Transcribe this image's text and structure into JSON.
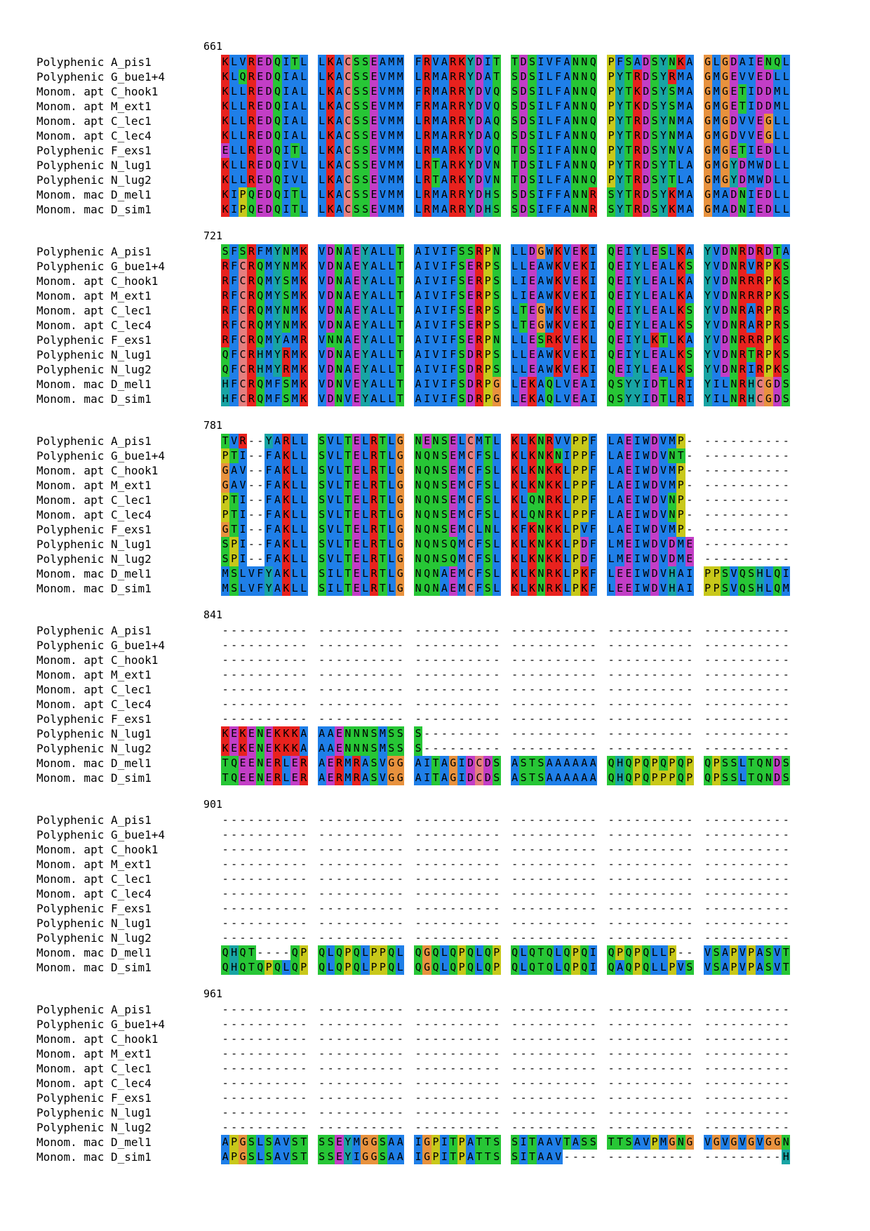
{
  "alignment": {
    "blocks": [
      {
        "start": "661",
        "rows": [
          {
            "name": "Polyphenic A_pis1",
            "seq": "KLVREDQITL LKACSSEAMM FRVARKYDIT TDSIVFANNQ PFSADSYNKA GLGDAIENQL"
          },
          {
            "name": "Polyphenic G_bue1+4",
            "seq": "KLQREDQIAL LKACSSEVMM LRMARRYDAT SDSILFANNQ PYTRDSYRMA GMGEVVEDLL"
          },
          {
            "name": "Monom. apt C_hook1",
            "seq": "KLLREDQIAL LKACSSEVMM FRMARRYDVQ SDSILFANNQ PYTKDSYSMA GMGETIDDML"
          },
          {
            "name": "Monom. apt M_ext1",
            "seq": "KLLREDQIAL LKACSSEVMM FRMARRYDVQ SDSILFANNQ PYTKDSYSMA GMGETIDDML"
          },
          {
            "name": "Monom. apt C_lec1",
            "seq": "KLLREDQIAL LKACSSEVMM LRMARRYDAQ SDSILFANNQ PYTRDSYNMA GMGDVVEGLL"
          },
          {
            "name": "Monom. apt C_lec4",
            "seq": "KLLREDQIAL LKACSSEVMM LRMARRYDAQ SDSILFANNQ PYTRDSYNMA GMGDVVEGLL"
          },
          {
            "name": "Polyphenic F_exs1",
            "seq": "ELLREDQITL LKACSSEVMM LRMARKYDVQ TDSIIFANNQ PYTRDSYNVA GMGETIEDLL"
          },
          {
            "name": "Polyphenic N_lug1",
            "seq": "KLLREDQIVL LKACSSEVMM LRTARKYDVN TDSILFANNQ PYTRDSYTLA GMGYDMWDLL"
          },
          {
            "name": "Polyphenic N_lug2",
            "seq": "KLLREDQIVL LKACSSEVMM LRTARKYDVN TDSILFANNQ PYTRDSYTLA GMGYDMWDLL"
          },
          {
            "name": "Monom. mac D_mel1",
            "seq": "KIPQEDQITL LKACSSEVMM LRMARRYDHS SDSIFFANNR SYTRDSYKMA GMADNIEDLL"
          },
          {
            "name": "Monom. mac D_sim1",
            "seq": "KIPQEDQITL LKACSSEVMM LRMARRYDHS SDSIFFANNR SYTRDSYKMA GMADNIEDLL"
          }
        ]
      },
      {
        "start": "721",
        "rows": [
          {
            "name": "Polyphenic A_pis1",
            "seq": "SFSRFMYNMK VDNAEYALLT AIVIFSSRPN LLDGWKVEKI QEIYLESLKA YVDNRDRDTA"
          },
          {
            "name": "Polyphenic G_bue1+4",
            "seq": "RFCRQMYNMK VDNAEYALLT AIVIFSERPS LLEAWKVEKI QEIYLEALKS YVDNRVRPKS"
          },
          {
            "name": "Monom. apt C_hook1",
            "seq": "RFCRQMYSMK VDNAEYALLT AIVIFSERPS LIEAWKVEKI QEIYLEALKA YVDNRRRPKS"
          },
          {
            "name": "Monom. apt M_ext1",
            "seq": "RFCRQMYSMK VDNAEYALLT AIVIFSERPS LIEAWKVEKI QEIYLEALKA YVDNRRRPKS"
          },
          {
            "name": "Monom. apt C_lec1",
            "seq": "RFCRQMYNMK VDNAEYALLT AIVIFSERPS LTEGWKVEKI QEIYLEALKS YVDNRARPRS"
          },
          {
            "name": "Monom. apt C_lec4",
            "seq": "RFCRQMYNMK VDNAEYALLT AIVIFSERPS LTEGWKVEKI QEIYLEALKS YVDNRARPRS"
          },
          {
            "name": "Polyphenic F_exs1",
            "seq": "RFCRQMYAMR VNNAEYALLT AIVIFSERPN LLESRKVEKL QEIYLKTLKA YVDNRRRPKS"
          },
          {
            "name": "Polyphenic N_lug1",
            "seq": "QFCRHMYRMK VDNAEYALLT AIVIFSDRPS LLEAWKVEKI QEIYLEALKS YVDNRTRPKS"
          },
          {
            "name": "Polyphenic N_lug2",
            "seq": "QFCRHMYRMK VDNAEYALLT AIVIFSDRPS LLEAWKVEKI QEIYLEALKS YVDNRIRPKS"
          },
          {
            "name": "Monom. mac D_mel1",
            "seq": "HFCRQMFSMK VDNVEYALLT AIVIFSDRPG LEKAQLVEAI QSYYIDTLRI YILNRHCGDS"
          },
          {
            "name": "Monom. mac D_sim1",
            "seq": "HFCRQMFSMK VDNVEYALLT AIVIFSDRPG LEKAQLVEAI QSYYIDTLRI YILNRHCGDS"
          }
        ]
      },
      {
        "start": "781",
        "rows": [
          {
            "name": "Polyphenic A_pis1",
            "seq": "TVR--YARLL SVLTELRTLG NENSELCMTL KLKNRVVPPF LAEIWDVMP- ----------"
          },
          {
            "name": "Polyphenic G_bue1+4",
            "seq": "PTI--FAKLL SVLTELRTLG NQNSEMCFSL KLKNKNIPPF LAEIWDVNT- ----------"
          },
          {
            "name": "Monom. apt C_hook1",
            "seq": "GAV--FAKLL SVLTELRTLG NQNSEMCFSL KLKNKKLPPF LAEIWDVMP- ----------"
          },
          {
            "name": "Monom. apt M_ext1",
            "seq": "GAV--FAKLL SVLTELRTLG NQNSEMCFSL KLKNKKLPPF LAEIWDVMP- ----------"
          },
          {
            "name": "Monom. apt C_lec1",
            "seq": "PTI--FAKLL SVLTELRTLG NQNSEMCFSL KLQNRKLPPF LAEIWDVNP- ----------"
          },
          {
            "name": "Monom. apt C_lec4",
            "seq": "PTI--FAKLL SVLTELRTLG NQNSEMCFSL KLQNRKLPPF LAEIWDVNP- ----------"
          },
          {
            "name": "Polyphenic F_exs1",
            "seq": "GTI--FAKLL SVLTELRTLG NQNSEMCLNL KFKNKKLPVF LAEIWDVMP- ----------"
          },
          {
            "name": "Polyphenic N_lug1",
            "seq": "SPI--FAKLL SVLTELRTLG NQNSQMCFSL KLKNKKLPDF LMEIWDVDME ----------"
          },
          {
            "name": "Polyphenic N_lug2",
            "seq": "SPI--FAKLL SVLTELRTLG NQNSQMCFSL KLKNKKLPDF LMEIWDVDME ----------"
          },
          {
            "name": "Monom. mac D_mel1",
            "seq": "MSLVFYAKLL SILTELRTLG NQNAEMCFSL KLKNRKLPKF LEEIWDVHAI PPSVQSHLQI"
          },
          {
            "name": "Monom. mac D_sim1",
            "seq": "MSLVFYAKLL SILTELRTLG NQNAEMCFSL KLKNRKLPKF LEEIWDVHAI PPSVQSHLQM"
          }
        ]
      },
      {
        "start": "841",
        "rows": [
          {
            "name": "Polyphenic A_pis1",
            "seq": "---------- ---------- ---------- ---------- ---------- ----------"
          },
          {
            "name": "Polyphenic G_bue1+4",
            "seq": "---------- ---------- ---------- ---------- ---------- ----------"
          },
          {
            "name": "Monom. apt C_hook1",
            "seq": "---------- ---------- ---------- ---------- ---------- ----------"
          },
          {
            "name": "Monom. apt M_ext1",
            "seq": "---------- ---------- ---------- ---------- ---------- ----------"
          },
          {
            "name": "Monom. apt C_lec1",
            "seq": "---------- ---------- ---------- ---------- ---------- ----------"
          },
          {
            "name": "Monom. apt C_lec4",
            "seq": "---------- ---------- ---------- ---------- ---------- ----------"
          },
          {
            "name": "Polyphenic F_exs1",
            "seq": "---------- ---------- ---------- ---------- ---------- ----------"
          },
          {
            "name": "Polyphenic N_lug1",
            "seq": "KEKENEKKKA AAENNNSMSS S--------- ---------- ---------- ----------"
          },
          {
            "name": "Polyphenic N_lug2",
            "seq": "KEKENEKKKA AAENNNSMSS S--------- ---------- ---------- ----------"
          },
          {
            "name": "Monom. mac D_mel1",
            "seq": "TQEENERLER AERMRASVGG AITAGIDCDS ASTSAAAAAA QHQPQPQPQP QPSSLTQNDS"
          },
          {
            "name": "Monom. mac D_sim1",
            "seq": "TQEENERLER AERMRASVGG AITAGIDCDS ASTSAAAAAA QHQPQPPPQP QPSSLTQNDS"
          }
        ]
      },
      {
        "start": "901",
        "rows": [
          {
            "name": "Polyphenic A_pis1",
            "seq": "---------- ---------- ---------- ---------- ---------- ----------"
          },
          {
            "name": "Polyphenic G_bue1+4",
            "seq": "---------- ---------- ---------- ---------- ---------- ----------"
          },
          {
            "name": "Monom. apt C_hook1",
            "seq": "---------- ---------- ---------- ---------- ---------- ----------"
          },
          {
            "name": "Monom. apt M_ext1",
            "seq": "---------- ---------- ---------- ---------- ---------- ----------"
          },
          {
            "name": "Monom. apt C_lec1",
            "seq": "---------- ---------- ---------- ---------- ---------- ----------"
          },
          {
            "name": "Monom. apt C_lec4",
            "seq": "---------- ---------- ---------- ---------- ---------- ----------"
          },
          {
            "name": "Polyphenic F_exs1",
            "seq": "---------- ---------- ---------- ---------- ---------- ----------"
          },
          {
            "name": "Polyphenic N_lug1",
            "seq": "---------- ---------- ---------- ---------- ---------- ----------"
          },
          {
            "name": "Polyphenic N_lug2",
            "seq": "---------- ---------- ---------- ---------- ---------- ----------"
          },
          {
            "name": "Monom. mac D_mel1",
            "seq": "QHQT----QP QLQPQLPPQL QGQLQPQLQP QLQTQLQPQI QPQPQLLP-- VSAPVPASVT"
          },
          {
            "name": "Monom. mac D_sim1",
            "seq": "QHQTQPQLQP QLQPQLPPQL QGQLQPQLQP QLQTQLQPQI QAQPQLLPVS VSAPVPASVT"
          }
        ]
      },
      {
        "start": "961",
        "rows": [
          {
            "name": "Polyphenic A_pis1",
            "seq": "---------- ---------- ---------- ---------- ---------- ----------"
          },
          {
            "name": "Polyphenic G_bue1+4",
            "seq": "---------- ---------- ---------- ---------- ---------- ----------"
          },
          {
            "name": "Monom. apt C_hook1",
            "seq": "---------- ---------- ---------- ---------- ---------- ----------"
          },
          {
            "name": "Monom. apt M_ext1",
            "seq": "---------- ---------- ---------- ---------- ---------- ----------"
          },
          {
            "name": "Monom. apt C_lec1",
            "seq": "---------- ---------- ---------- ---------- ---------- ----------"
          },
          {
            "name": "Monom. apt C_lec4",
            "seq": "---------- ---------- ---------- ---------- ---------- ----------"
          },
          {
            "name": "Polyphenic F_exs1",
            "seq": "---------- ---------- ---------- ---------- ---------- ----------"
          },
          {
            "name": "Polyphenic N_lug1",
            "seq": "---------- ---------- ---------- ---------- ---------- ----------"
          },
          {
            "name": "Polyphenic N_lug2",
            "seq": "---------- ---------- ---------- ---------- ---------- ----------"
          },
          {
            "name": "Monom. mac D_mel1",
            "seq": "APGSLSAVST SSEYMGGSAA IGPITPATTS SITAAVTASS TTSAVPMGNG VGVGVGVGGN"
          },
          {
            "name": "Monom. mac D_sim1",
            "seq": "APGSLSAVST SSEYIGGSAA IGPITPATTS SITAAV---- ---------- ---------H"
          }
        ]
      }
    ]
  },
  "residue_colors": {
    "hydrophobic": "#1f7fe8",
    "positive": "#e8221e",
    "negative": "#c23ec6",
    "polar": "#27c636",
    "cysteine": "#e57f7f",
    "glycine": "#e8923e",
    "proline": "#c8c81a",
    "aromatic": "#18a4a4"
  },
  "residue_classes": {
    "A": "hydrophobic",
    "I": "hydrophobic",
    "L": "hydrophobic",
    "M": "hydrophobic",
    "F": "hydrophobic",
    "W": "hydrophobic",
    "V": "hydrophobic",
    "K": "positive",
    "R": "positive",
    "E": "negative",
    "D": "negative",
    "N": "polar",
    "Q": "polar",
    "S": "polar",
    "T": "polar",
    "C": "cysteine",
    "G": "glycine",
    "P": "proline",
    "H": "aromatic",
    "Y": "aromatic"
  }
}
